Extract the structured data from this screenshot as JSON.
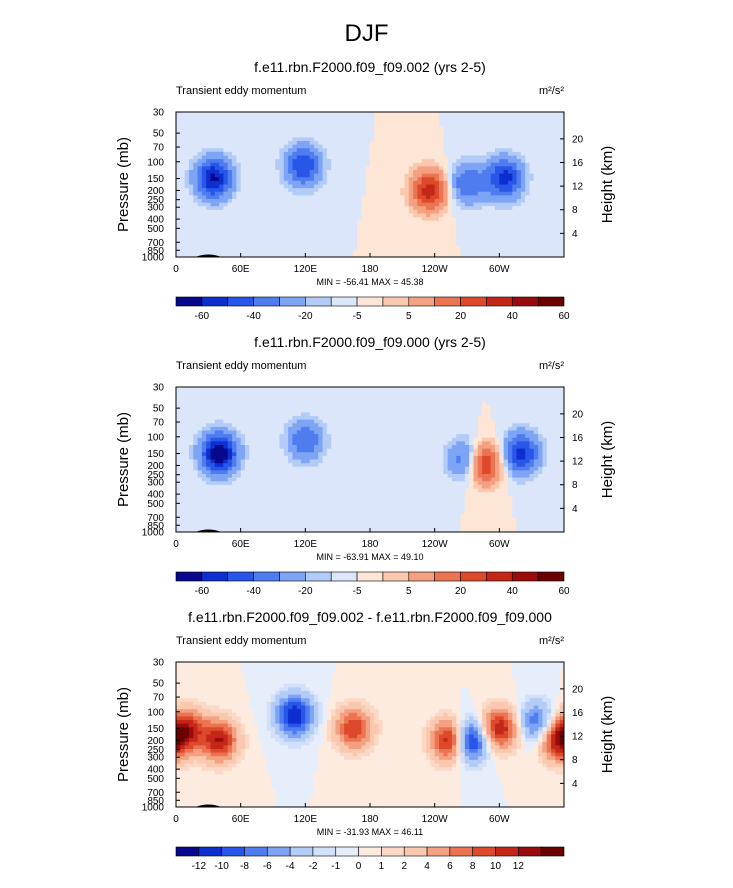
{
  "page": {
    "title": "DJF"
  },
  "palettes": {
    "wide": [
      "#08088c",
      "#0d2fd0",
      "#2856e8",
      "#4f7df0",
      "#7ea4f5",
      "#b3ccf7",
      "#dbe6fa",
      "#fde6d6",
      "#f9c8ae",
      "#f4a182",
      "#ec7453",
      "#dc4a2b",
      "#c42618",
      "#9a0c0b",
      "#6a0000"
    ],
    "diff": [
      "#08088c",
      "#0d2fd0",
      "#2856e8",
      "#4f7df0",
      "#7ea4f5",
      "#b3ccf7",
      "#d2e0f9",
      "#e6eefb",
      "#fdebe0",
      "#fbd9c6",
      "#f9c8ae",
      "#f4a182",
      "#ec7453",
      "#dc4a2b",
      "#c42618",
      "#9a0c0b",
      "#6a0000"
    ]
  },
  "panels": [
    {
      "title": "f.e11.rbn.F2000.f09_f09.002 (yrs 2-5)",
      "left_label": "Transient eddy momentum",
      "units": "m²/s²",
      "min_max": "MIN = -56.41  MAX = 45.38",
      "colorbar_labels": [
        "-60",
        "-40",
        "-20",
        "-5",
        "5",
        "20",
        "40",
        "60"
      ]
    },
    {
      "title": "f.e11.rbn.F2000.f09_f09.000 (yrs 2-5)",
      "left_label": "Transient eddy momentum",
      "units": "m²/s²",
      "min_max": "MIN = -63.91  MAX = 49.10",
      "colorbar_labels": [
        "-60",
        "-40",
        "-20",
        "-5",
        "5",
        "20",
        "40",
        "60"
      ]
    },
    {
      "title": "f.e11.rbn.F2000.f09_f09.002 - f.e11.rbn.F2000.f09_f09.000",
      "left_label": "Transient eddy momentum",
      "units": "m²/s²",
      "min_max": "MIN = -31.93  MAX = 46.11",
      "colorbar_labels": [
        "-12",
        "-10",
        "-8",
        "-6",
        "-4",
        "-2",
        "-1",
        "0",
        "1",
        "2",
        "4",
        "6",
        "8",
        "10",
        "12"
      ]
    }
  ],
  "chart_data": [
    {
      "type": "heatmap",
      "title": "f.e11.rbn.F2000.f09_f09.002 (yrs 2-5)",
      "xlabel": "",
      "ylabel": "Pressure (mb)",
      "y2label": "Height (km)",
      "x_ticks": [
        "0",
        "60E",
        "120E",
        "180",
        "120W",
        "60W"
      ],
      "y_ticks": [
        "30",
        "50",
        "70",
        "100",
        "150",
        "200",
        "250",
        "300",
        "400",
        "500",
        "700",
        "850",
        "1000"
      ],
      "y2_ticks": [
        "20",
        "16",
        "12",
        "8",
        "4"
      ],
      "contour_levels": [
        -60,
        -50,
        -40,
        -30,
        -20,
        -10,
        -5,
        0,
        5,
        10,
        20,
        30,
        40,
        50,
        60
      ],
      "min": -56.41,
      "max": 45.38,
      "features": [
        {
          "lon": 35,
          "p": 150,
          "value": -52
        },
        {
          "lon": 118,
          "p": 110,
          "value": -40
        },
        {
          "lon": 235,
          "p": 200,
          "value": 45
        },
        {
          "lon": 270,
          "p": 170,
          "value": -30
        },
        {
          "lon": 305,
          "p": 150,
          "value": -45
        }
      ]
    },
    {
      "type": "heatmap",
      "title": "f.e11.rbn.F2000.f09_f09.000 (yrs 2-5)",
      "xlabel": "",
      "ylabel": "Pressure (mb)",
      "y2label": "Height (km)",
      "x_ticks": [
        "0",
        "60E",
        "120E",
        "180",
        "120W",
        "60W"
      ],
      "y_ticks": [
        "30",
        "50",
        "70",
        "100",
        "150",
        "200",
        "250",
        "300",
        "400",
        "500",
        "700",
        "850",
        "1000"
      ],
      "y2_ticks": [
        "20",
        "16",
        "12",
        "8",
        "4"
      ],
      "contour_levels": [
        -60,
        -50,
        -40,
        -30,
        -20,
        -10,
        -5,
        0,
        5,
        10,
        20,
        30,
        40,
        50,
        60
      ],
      "min": -63.91,
      "max": 49.1,
      "features": [
        {
          "lon": 40,
          "p": 150,
          "value": -60
        },
        {
          "lon": 120,
          "p": 110,
          "value": -30
        },
        {
          "lon": 270,
          "p": 175,
          "value": -35
        },
        {
          "lon": 285,
          "p": 190,
          "value": 49
        },
        {
          "lon": 320,
          "p": 150,
          "value": -45
        }
      ]
    },
    {
      "type": "heatmap",
      "title": "f.e11.rbn.F2000.f09_f09.002 - f.e11.rbn.F2000.f09_f09.000",
      "xlabel": "",
      "ylabel": "Pressure (mb)",
      "y2label": "Height (km)",
      "x_ticks": [
        "0",
        "60E",
        "120E",
        "180",
        "120W",
        "60W"
      ],
      "y_ticks": [
        "30",
        "50",
        "70",
        "100",
        "150",
        "200",
        "250",
        "300",
        "400",
        "500",
        "700",
        "850",
        "1000"
      ],
      "y2_ticks": [
        "20",
        "16",
        "12",
        "8",
        "4"
      ],
      "contour_levels": [
        -14,
        -12,
        -10,
        -8,
        -6,
        -4,
        -2,
        -1,
        0,
        1,
        2,
        4,
        6,
        8,
        10,
        12,
        14
      ],
      "min": -31.93,
      "max": 46.11,
      "features": [
        {
          "lon": 10,
          "p": 150,
          "value": 10
        },
        {
          "lon": 40,
          "p": 200,
          "value": 12
        },
        {
          "lon": 110,
          "p": 110,
          "value": -12
        },
        {
          "lon": 165,
          "p": 150,
          "value": 10
        },
        {
          "lon": 255,
          "p": 200,
          "value": 14
        },
        {
          "lon": 272,
          "p": 200,
          "value": -14
        },
        {
          "lon": 300,
          "p": 150,
          "value": 12
        },
        {
          "lon": 335,
          "p": 130,
          "value": -8
        },
        {
          "lon": 355,
          "p": 200,
          "value": 12
        }
      ]
    }
  ]
}
